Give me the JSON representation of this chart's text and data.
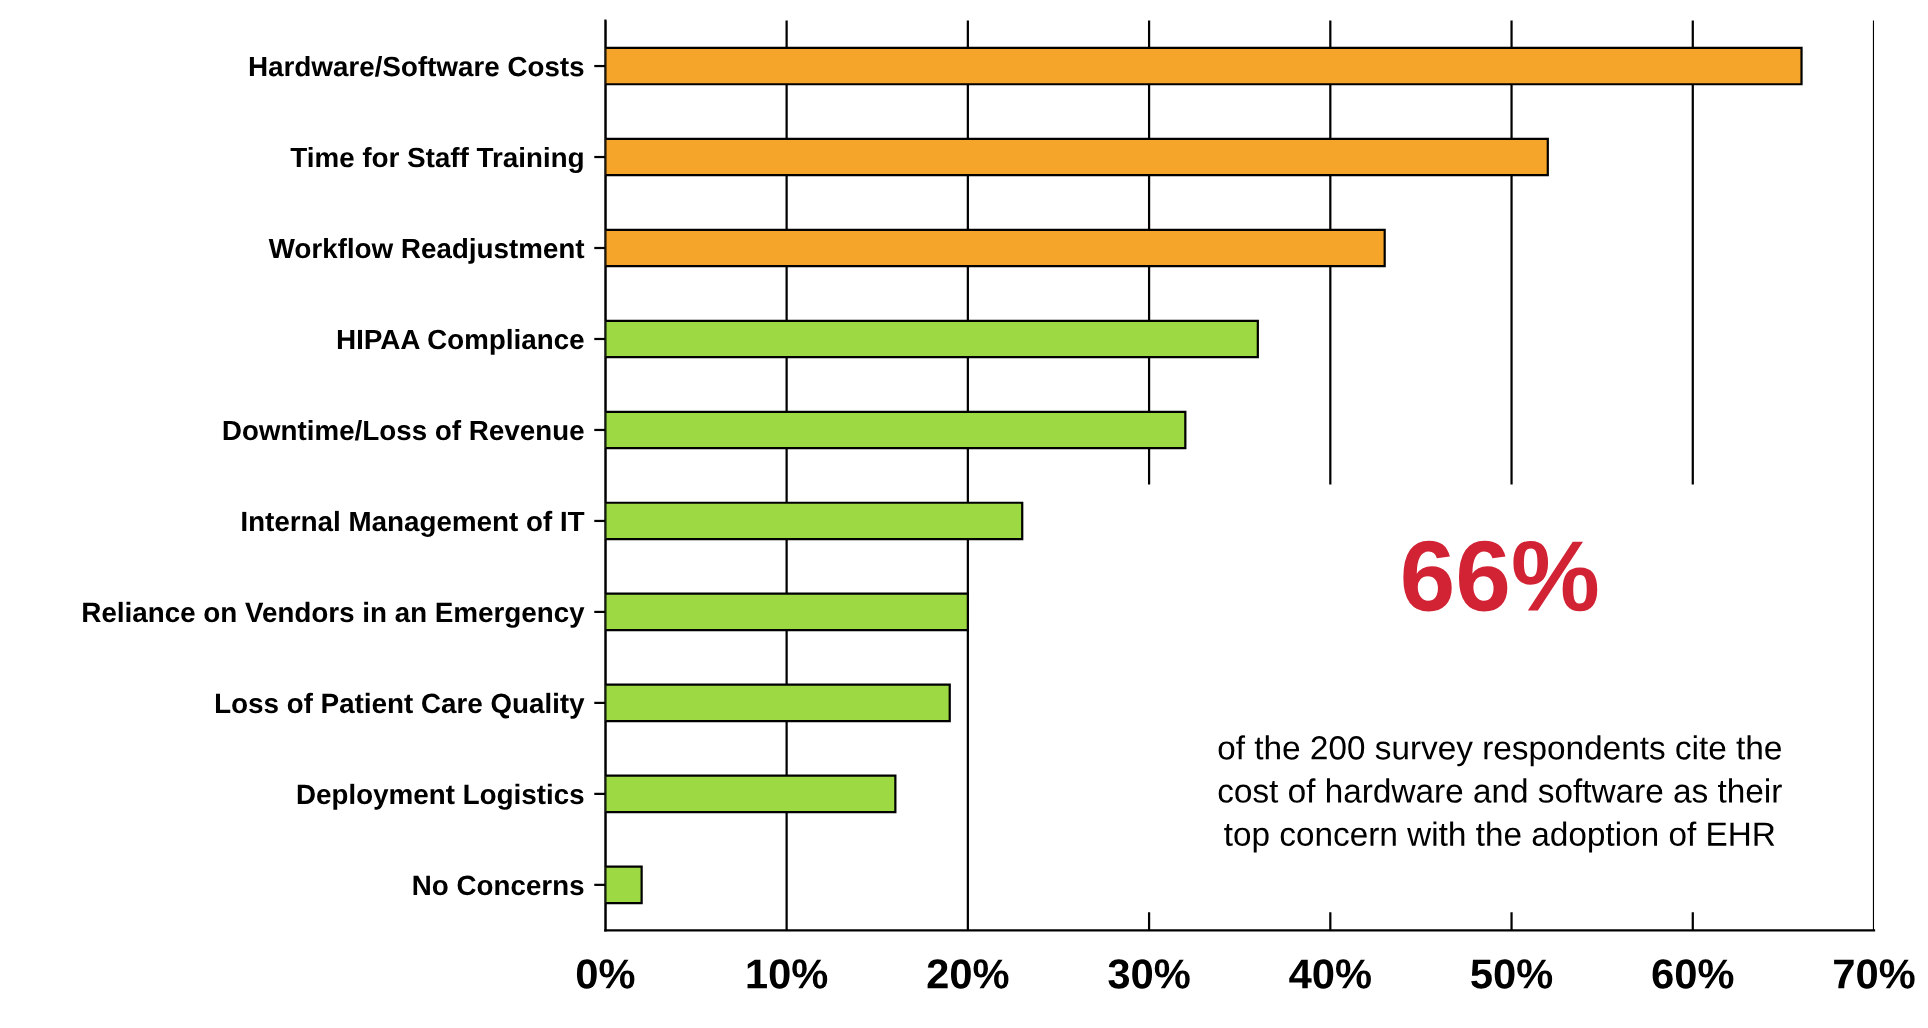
{
  "chart_data": {
    "type": "bar",
    "orientation": "horizontal",
    "categories": [
      "Hardware/Software Costs",
      "Time for Staff Training",
      "Workflow Readjustment",
      "HIPAA Compliance",
      "Downtime/Loss of Revenue",
      "Internal Management of IT",
      "Reliance on Vendors in an Emergency",
      "Loss of Patient Care Quality",
      "Deployment Logistics",
      "No Concerns"
    ],
    "values": [
      66,
      52,
      43,
      36,
      32,
      23,
      20,
      19,
      16,
      2
    ],
    "colors": [
      "#f5a52a",
      "#f5a52a",
      "#f5a52a",
      "#9dd943",
      "#9dd943",
      "#9dd943",
      "#9dd943",
      "#9dd943",
      "#9dd943",
      "#9dd943"
    ],
    "xlim": [
      0,
      70
    ],
    "xticks": [
      {
        "value": 0,
        "label": "0%"
      },
      {
        "value": 10,
        "label": "10%"
      },
      {
        "value": 20,
        "label": "20%"
      },
      {
        "value": 30,
        "label": "30%"
      },
      {
        "value": 40,
        "label": "40%"
      },
      {
        "value": 50,
        "label": "50%"
      },
      {
        "value": 60,
        "label": "60%"
      },
      {
        "value": 70,
        "label": "70%"
      }
    ],
    "grid": "x",
    "annotations": [
      "66%",
      "of the 200 survey respondents cite the\ncost of hardware and software as their\ntop concern with the adoption of EHR"
    ]
  }
}
